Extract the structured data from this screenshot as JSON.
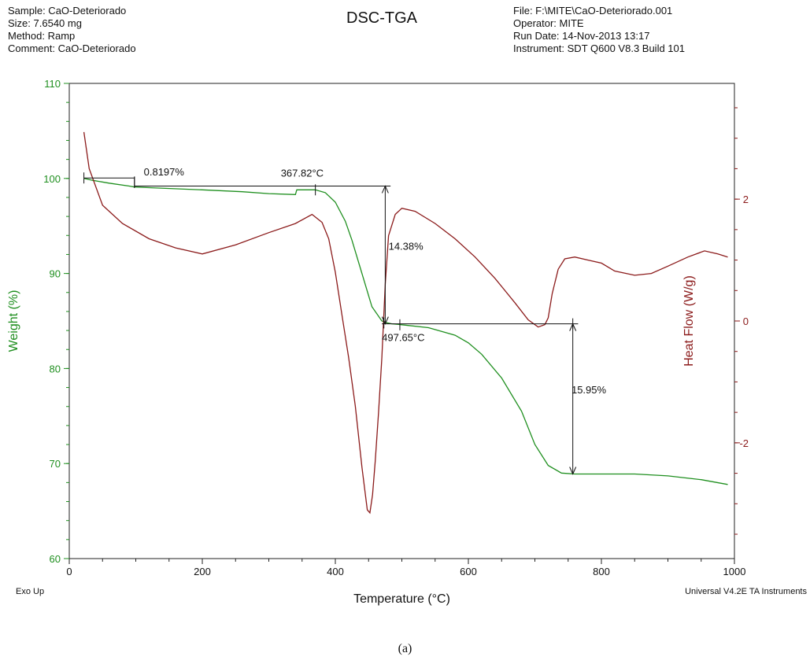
{
  "header": {
    "sample": "Sample: CaO-Deteriorado",
    "size": "Size:  7.6540 mg",
    "method": "Method: Ramp",
    "comment": "Comment: CaO-Deteriorado",
    "file": "File: F:\\MITE\\CaO-Deteriorado.001",
    "operator": "Operator: MITE",
    "run_date": "Run Date: 14-Nov-2013 13:17",
    "instrument": "Instrument: SDT Q600 V8.3 Build 101"
  },
  "footer": {
    "left": "Exo Up",
    "right": "Universal V4.2E TA Instruments",
    "caption": "(a)"
  },
  "chart_data": {
    "type": "line",
    "title": "DSC-TGA",
    "xlabel": "Temperature (°C)",
    "ylabel": "Weight (%)",
    "y2label": "Heat Flow (W/g)",
    "xlim": [
      0,
      1000
    ],
    "ylim": [
      60,
      110
    ],
    "y2lim": [
      -3.9,
      3.9
    ],
    "x_ticks": [
      0,
      200,
      400,
      600,
      800,
      1000
    ],
    "y_ticks": [
      60,
      70,
      80,
      90,
      100,
      110
    ],
    "y2_ticks": [
      -2,
      0,
      2
    ],
    "colors": {
      "weight": "#1f8f1f",
      "heat": "#8b1a1a",
      "axis": "#222222"
    },
    "series": [
      {
        "axis": "left",
        "x": [
          22,
          35,
          60,
          90,
          98,
          130,
          200,
          260,
          300,
          340,
          342,
          370,
          385,
          400,
          415,
          425,
          440,
          455,
          470,
          478,
          485,
          500,
          540,
          580,
          600,
          620,
          650,
          680,
          700,
          720,
          740,
          760,
          800,
          850,
          900,
          950,
          990
        ],
        "y": [
          100,
          99.8,
          99.5,
          99.2,
          99.1,
          99.0,
          98.8,
          98.6,
          98.4,
          98.3,
          98.8,
          98.8,
          98.5,
          97.5,
          95.5,
          93.5,
          90.0,
          86.5,
          85.0,
          84.8,
          84.7,
          84.6,
          84.3,
          83.5,
          82.7,
          81.5,
          79.0,
          75.5,
          72.0,
          69.8,
          69.0,
          68.9,
          68.9,
          68.9,
          68.7,
          68.3,
          67.8
        ]
      },
      {
        "axis": "right",
        "x": [
          22,
          30,
          50,
          80,
          120,
          160,
          200,
          250,
          300,
          340,
          365,
          380,
          390,
          400,
          410,
          420,
          430,
          440,
          448,
          452,
          456,
          460,
          465,
          470,
          475,
          480,
          490,
          500,
          520,
          550,
          580,
          610,
          640,
          670,
          690,
          705,
          715,
          720,
          726,
          735,
          745,
          760,
          780,
          800,
          820,
          850,
          875,
          900,
          930,
          955,
          975,
          990
        ],
        "y": [
          3.1,
          2.5,
          1.9,
          1.6,
          1.35,
          1.2,
          1.1,
          1.25,
          1.45,
          1.6,
          1.75,
          1.62,
          1.35,
          0.8,
          0.1,
          -0.6,
          -1.4,
          -2.4,
          -3.1,
          -3.15,
          -2.85,
          -2.3,
          -1.5,
          -0.6,
          0.6,
          1.4,
          1.75,
          1.85,
          1.8,
          1.6,
          1.35,
          1.05,
          0.7,
          0.3,
          0.02,
          -0.1,
          -0.06,
          0.05,
          0.45,
          0.85,
          1.02,
          1.05,
          1.0,
          0.95,
          0.82,
          0.75,
          0.78,
          0.9,
          1.05,
          1.15,
          1.1,
          1.05
        ]
      }
    ],
    "annotations": [
      {
        "text": "0.8197%",
        "x": 112,
        "y": 100.3
      },
      {
        "text": "367.82°C",
        "x": 318,
        "y": 100.2
      },
      {
        "text": "14.38%",
        "x": 480,
        "y": 92.5
      },
      {
        "text": "497.65°C",
        "x": 470,
        "y": 82.9
      },
      {
        "text": "15.95%",
        "x": 755,
        "y": 77.4
      }
    ]
  }
}
